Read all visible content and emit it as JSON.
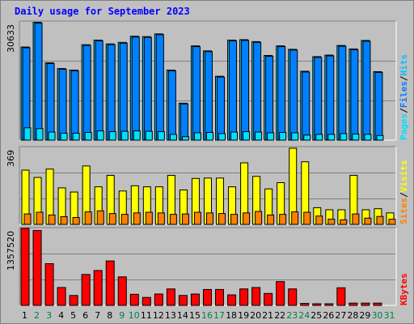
{
  "title": "Daily usage for September 2023",
  "colors": {
    "hits": "#00c0ff",
    "files": "#0080ff",
    "pages": "#00e0ff",
    "visits": "#ffff00",
    "sites": "#ff8000",
    "kbytes": "#ff0000",
    "weekend_day": "#008040",
    "weekday": "#000000",
    "bg": "#c0c0c0"
  },
  "chart_data": [
    {
      "type": "bar",
      "name": "hits-files-pages",
      "ymax_label": "30633",
      "ylim": [
        0,
        30633
      ],
      "right_labels": [
        "Pages",
        "Files",
        "Hits"
      ],
      "x": [
        1,
        2,
        3,
        4,
        5,
        6,
        7,
        8,
        9,
        10,
        11,
        12,
        13,
        14,
        15,
        16,
        17,
        18,
        19,
        20,
        21,
        22,
        23,
        24,
        25,
        26,
        27,
        28,
        29,
        30,
        31
      ],
      "series": [
        {
          "name": "Hits",
          "values": [
            24200,
            30633,
            20100,
            18600,
            18200,
            24800,
            26000,
            25000,
            25400,
            27000,
            26900,
            27600,
            18200,
            9600,
            24500,
            23200,
            16600,
            26000,
            26100,
            25600,
            22000,
            24500,
            23600,
            17900,
            21700,
            22100,
            24600,
            23700,
            25900,
            17800,
            0
          ]
        },
        {
          "name": "Files",
          "values": [
            24000,
            30400,
            19900,
            18400,
            18000,
            24600,
            25800,
            24800,
            25200,
            26800,
            26700,
            27400,
            18000,
            9400,
            24300,
            23000,
            16400,
            25800,
            25900,
            25400,
            21800,
            24300,
            23400,
            17700,
            21500,
            21900,
            24400,
            23500,
            25700,
            17600,
            0
          ]
        },
        {
          "name": "Pages",
          "values": [
            3200,
            3000,
            2100,
            1800,
            1800,
            2000,
            2400,
            2200,
            2300,
            2400,
            2300,
            2200,
            1500,
            900,
            1900,
            2000,
            1700,
            2100,
            2200,
            2100,
            1900,
            2000,
            1900,
            1300,
            1500,
            1500,
            1700,
            1600,
            1500,
            1200,
            0
          ]
        }
      ]
    },
    {
      "type": "bar",
      "name": "visits-sites",
      "ymax_label": "369",
      "ylim": [
        0,
        369
      ],
      "right_labels": [
        "Sites",
        "Visits"
      ],
      "x": [
        1,
        2,
        3,
        4,
        5,
        6,
        7,
        8,
        9,
        10,
        11,
        12,
        13,
        14,
        15,
        16,
        17,
        18,
        19,
        20,
        21,
        22,
        23,
        24,
        25,
        26,
        27,
        28,
        29,
        30,
        31
      ],
      "series": [
        {
          "name": "Visits",
          "values": [
            260,
            225,
            265,
            175,
            155,
            280,
            180,
            235,
            160,
            185,
            180,
            180,
            235,
            165,
            220,
            222,
            222,
            180,
            295,
            230,
            170,
            200,
            365,
            300,
            80,
            70,
            70,
            235,
            70,
            75,
            55
          ]
        },
        {
          "name": "Sites",
          "values": [
            50,
            58,
            45,
            37,
            33,
            60,
            65,
            52,
            48,
            55,
            58,
            55,
            48,
            50,
            58,
            55,
            52,
            48,
            55,
            62,
            45,
            48,
            60,
            58,
            40,
            25,
            22,
            50,
            30,
            38,
            25
          ]
        }
      ]
    },
    {
      "type": "bar",
      "name": "kbytes",
      "ymax_label": "1357520",
      "ylim": [
        0,
        1357520
      ],
      "right_labels": [
        "KBytes"
      ],
      "x": [
        1,
        2,
        3,
        4,
        5,
        6,
        7,
        8,
        9,
        10,
        11,
        12,
        13,
        14,
        15,
        16,
        17,
        18,
        19,
        20,
        21,
        22,
        23,
        24,
        25,
        26,
        27,
        28,
        29,
        30,
        31
      ],
      "series": [
        {
          "name": "KBytes",
          "values": [
            1357520,
            1320000,
            735000,
            315000,
            175000,
            545000,
            615000,
            783000,
            503000,
            195000,
            140000,
            200000,
            290000,
            175000,
            200000,
            280000,
            280000,
            185000,
            290000,
            315000,
            210000,
            420000,
            290000,
            35000,
            20000,
            20000,
            310000,
            40000,
            40000,
            40000,
            0
          ]
        }
      ]
    }
  ],
  "days": [
    {
      "label": "1",
      "weekend": false
    },
    {
      "label": "2",
      "weekend": true
    },
    {
      "label": "3",
      "weekend": true
    },
    {
      "label": "4",
      "weekend": false
    },
    {
      "label": "5",
      "weekend": false
    },
    {
      "label": "6",
      "weekend": false
    },
    {
      "label": "7",
      "weekend": false
    },
    {
      "label": "8",
      "weekend": false
    },
    {
      "label": "9",
      "weekend": true
    },
    {
      "label": "10",
      "weekend": true
    },
    {
      "label": "11",
      "weekend": false
    },
    {
      "label": "12",
      "weekend": false
    },
    {
      "label": "13",
      "weekend": false
    },
    {
      "label": "14",
      "weekend": false
    },
    {
      "label": "15",
      "weekend": false
    },
    {
      "label": "16",
      "weekend": true
    },
    {
      "label": "17",
      "weekend": true
    },
    {
      "label": "18",
      "weekend": false
    },
    {
      "label": "19",
      "weekend": false
    },
    {
      "label": "20",
      "weekend": false
    },
    {
      "label": "21",
      "weekend": false
    },
    {
      "label": "22",
      "weekend": false
    },
    {
      "label": "23",
      "weekend": true
    },
    {
      "label": "24",
      "weekend": true
    },
    {
      "label": "25",
      "weekend": false
    },
    {
      "label": "26",
      "weekend": false
    },
    {
      "label": "27",
      "weekend": false
    },
    {
      "label": "28",
      "weekend": false
    },
    {
      "label": "29",
      "weekend": false
    },
    {
      "label": "30",
      "weekend": true
    },
    {
      "label": "31",
      "weekend": true
    }
  ]
}
